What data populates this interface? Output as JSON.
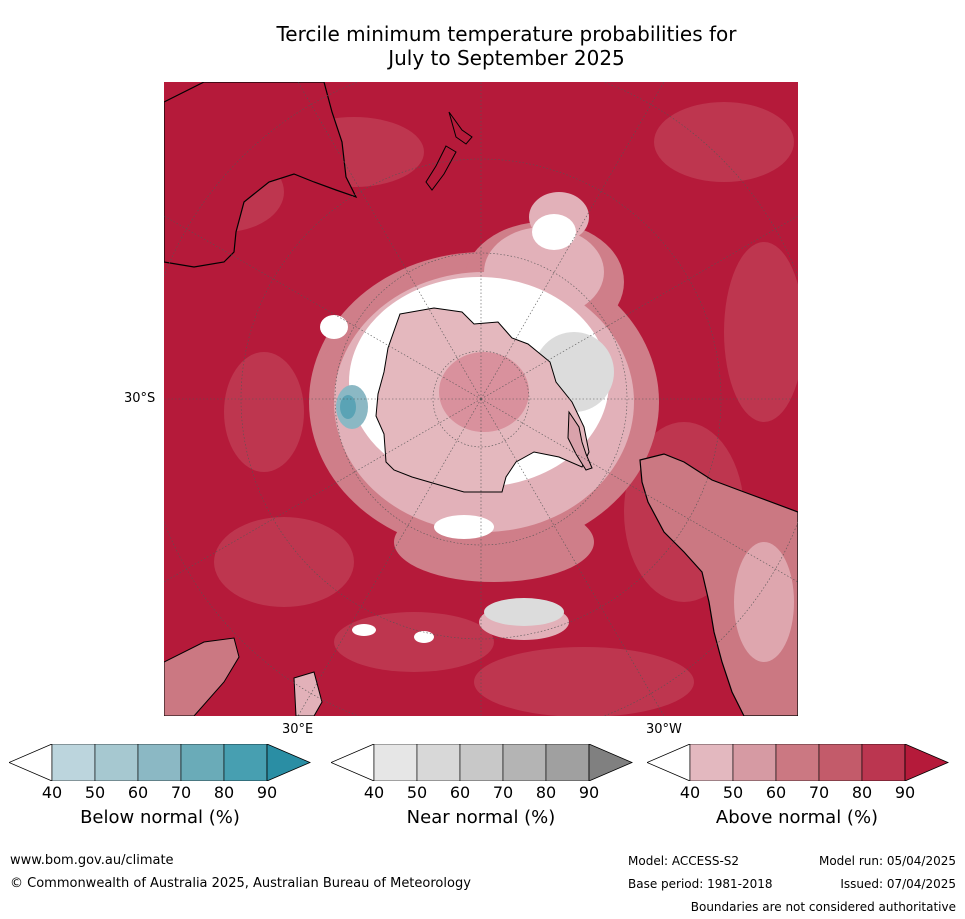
{
  "title": {
    "line1": "Tercile minimum temperature probabilities for",
    "line2": "July to September 2025"
  },
  "map": {
    "graticule_labels": {
      "lat": "30°S",
      "lon_east": "30°E",
      "lon_west": "30°W"
    },
    "colors": {
      "land_outline": "#000000",
      "dominant": "#b51a3a"
    }
  },
  "legends": [
    {
      "title": "Below normal (%)",
      "ticks": [
        "40",
        "50",
        "60",
        "70",
        "80",
        "90"
      ],
      "colors": [
        "#ffffff",
        "#bcd5dd",
        "#a6c8d0",
        "#8bb8c4",
        "#6aabb8",
        "#479fb1",
        "#2a8ea4"
      ]
    },
    {
      "title": "Near normal (%)",
      "ticks": [
        "40",
        "50",
        "60",
        "70",
        "80",
        "90"
      ],
      "colors": [
        "#ffffff",
        "#e6e6e6",
        "#d8d8d8",
        "#c8c8c8",
        "#b4b4b4",
        "#a0a0a0",
        "#808080"
      ]
    },
    {
      "title": "Above normal (%)",
      "ticks": [
        "40",
        "50",
        "60",
        "70",
        "80",
        "90"
      ],
      "colors": [
        "#ffffff",
        "#e3b8bf",
        "#d69aa3",
        "#cb7882",
        "#c35b6a",
        "#bb3650",
        "#b51a3a"
      ]
    }
  ],
  "footer": {
    "website": "www.bom.gov.au/climate",
    "copyright": "© Commonwealth of Australia 2025, Australian Bureau of Meteorology",
    "model": "Model: ACCESS-S2",
    "model_run": "Model run: 05/04/2025",
    "base_period": "Base period: 1981-2018",
    "issued": "Issued: 07/04/2025",
    "boundaries": "Boundaries are not considered authoritative"
  }
}
